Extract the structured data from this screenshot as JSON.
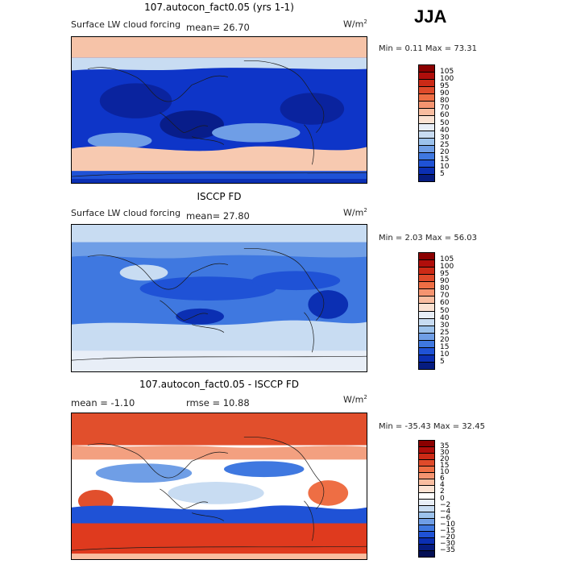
{
  "season": "JJA",
  "panels": [
    {
      "title": "107.autocon_fact0.05 (yrs 1-1)",
      "variable": "Surface LW cloud forcing",
      "mean_text": "mean=  26.70",
      "rmse_text": "",
      "units_base": "W/m",
      "units_exp": "2",
      "minmax_text": "Min =   0.11 Max =  73.31",
      "palette": "blue_to_red",
      "colorbar_ticks": [
        "105",
        "100",
        "95",
        "90",
        "80",
        "70",
        "60",
        "50",
        "40",
        "30",
        "25",
        "20",
        "15",
        "10",
        "5"
      ],
      "colorbar_colors": [
        "#8b0000",
        "#b00e0b",
        "#cc2a16",
        "#df4a2a",
        "#ee6e44",
        "#f59470",
        "#f9bda0",
        "#fbe2d2",
        "#e8eef7",
        "#c8dcf2",
        "#9cc2ec",
        "#6f9ee6",
        "#3f78e0",
        "#1f52d6",
        "#0b2fb3",
        "#061c80"
      ]
    },
    {
      "title": "ISCCP FD",
      "variable": "Surface LW cloud forcing",
      "mean_text": "mean=  27.80",
      "rmse_text": "",
      "units_base": "W/m",
      "units_exp": "2",
      "minmax_text": "Min =   2.03 Max =  56.03",
      "palette": "blue_to_red",
      "colorbar_ticks": [
        "105",
        "100",
        "95",
        "90",
        "80",
        "70",
        "60",
        "50",
        "40",
        "30",
        "25",
        "20",
        "15",
        "10",
        "5"
      ],
      "colorbar_colors": [
        "#8b0000",
        "#b00e0b",
        "#cc2a16",
        "#df4a2a",
        "#ee6e44",
        "#f59470",
        "#f9bda0",
        "#fbe2d2",
        "#e8eef7",
        "#c8dcf2",
        "#9cc2ec",
        "#6f9ee6",
        "#3f78e0",
        "#1f52d6",
        "#0b2fb3",
        "#061c80"
      ]
    },
    {
      "title": "107.autocon_fact0.05 - ISCCP FD",
      "variable": "",
      "mean_text": "mean =  -1.10",
      "rmse_text": "rmse =  10.88",
      "units_base": "W/m",
      "units_exp": "2",
      "minmax_text": "Min = -35.43 Max =  32.45",
      "palette": "difference",
      "colorbar_ticks": [
        "35",
        "30",
        "20",
        "15",
        "10",
        "6",
        "4",
        "2",
        "0",
        "−2",
        "−4",
        "−6",
        "−10",
        "−15",
        "−20",
        "−30",
        "−35"
      ],
      "colorbar_colors": [
        "#8b0000",
        "#b00e0b",
        "#cc2a16",
        "#df4a2a",
        "#ee6e44",
        "#f59470",
        "#f9bda0",
        "#fbe2d2",
        "#ffffff",
        "#e8eef7",
        "#c8dcf2",
        "#9cc2ec",
        "#6f9ee6",
        "#3f78e0",
        "#1f52d6",
        "#0b2fb3",
        "#061c80",
        "#030f55"
      ]
    }
  ]
}
